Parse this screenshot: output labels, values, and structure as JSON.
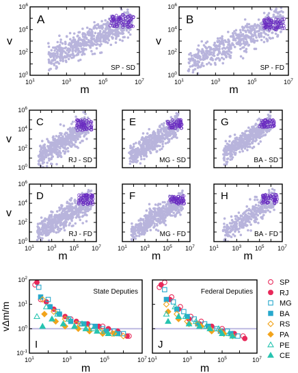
{
  "chart_data": {
    "type": "scatter",
    "log_scale": true,
    "axis_tick_labels": {
      "v_top": [
        "10^0",
        "10^2",
        "10^4",
        "10^6"
      ],
      "m_top": [
        "10^1",
        "10^3",
        "10^5",
        "10^7"
      ],
      "ratio": [
        "10^-1",
        "10^0",
        "10^1",
        "10^2"
      ]
    },
    "axis_ranges": {
      "m": [
        10,
        10000000
      ],
      "v": [
        1,
        1000000
      ],
      "ratio": [
        0.1,
        100
      ]
    },
    "xlabel": "m",
    "ylabel_top": "v",
    "ylabel_bottom": "vΔm/m",
    "reference_line_ratio": 1,
    "colors": {
      "cloud": "#b8b4dc",
      "highlight": "#6a2cc0",
      "ref_line": "#b9b5df",
      "text": "#000000"
    },
    "panels": [
      {
        "letter": "A",
        "label": "SP - SD",
        "cloud": {
          "m_range": [
            2.0,
            6.6
          ],
          "center_v": 3.1,
          "slope": 0.78,
          "spread": 0.55,
          "n": 650
        },
        "highlight": {
          "m_range": [
            5.4,
            6.7
          ],
          "v_range": [
            4.2,
            5.3
          ],
          "n": 70
        }
      },
      {
        "letter": "B",
        "label": "SP - FD",
        "cloud": {
          "m_range": [
            1.5,
            6.7
          ],
          "center_v": 2.9,
          "slope": 0.72,
          "spread": 0.6,
          "n": 550
        },
        "highlight": {
          "m_range": [
            5.6,
            6.8
          ],
          "v_range": [
            4.0,
            5.0
          ],
          "n": 70
        }
      },
      {
        "letter": "C",
        "label": "RJ - SD",
        "cloud": {
          "m_range": [
            1.8,
            6.3
          ],
          "center_v": 2.7,
          "slope": 0.75,
          "spread": 0.6,
          "n": 500
        },
        "highlight": {
          "m_range": [
            5.2,
            6.6
          ],
          "v_range": [
            3.9,
            5.0
          ],
          "n": 60
        }
      },
      {
        "letter": "E",
        "label": "MG - SD",
        "cloud": {
          "m_range": [
            1.6,
            6.0
          ],
          "center_v": 2.8,
          "slope": 0.75,
          "spread": 0.55,
          "n": 500
        },
        "highlight": {
          "m_range": [
            5.0,
            6.3
          ],
          "v_range": [
            4.1,
            5.0
          ],
          "n": 50
        }
      },
      {
        "letter": "G",
        "label": "BA - SD",
        "cloud": {
          "m_range": [
            1.8,
            6.0
          ],
          "center_v": 3.0,
          "slope": 0.8,
          "spread": 0.5,
          "n": 480
        },
        "highlight": {
          "m_range": [
            5.0,
            6.3
          ],
          "v_range": [
            4.2,
            5.0
          ],
          "n": 50
        }
      },
      {
        "letter": "D",
        "label": "RJ - FD",
        "cloud": {
          "m_range": [
            1.7,
            6.6
          ],
          "center_v": 2.6,
          "slope": 0.7,
          "spread": 0.6,
          "n": 550
        },
        "highlight": {
          "m_range": [
            5.4,
            6.7
          ],
          "v_range": [
            3.9,
            4.9
          ],
          "n": 60
        }
      },
      {
        "letter": "F",
        "label": "MG - FD",
        "cloud": {
          "m_range": [
            1.8,
            6.4
          ],
          "center_v": 2.6,
          "slope": 0.72,
          "spread": 0.55,
          "n": 500
        },
        "highlight": {
          "m_range": [
            5.2,
            6.5
          ],
          "v_range": [
            3.9,
            4.8
          ],
          "n": 55
        }
      },
      {
        "letter": "H",
        "label": "BA - FD",
        "cloud": {
          "m_range": [
            1.8,
            6.4
          ],
          "center_v": 2.6,
          "slope": 0.78,
          "spread": 0.55,
          "n": 350
        },
        "highlight": {
          "m_range": [
            5.2,
            6.6
          ],
          "v_range": [
            4.0,
            4.9
          ],
          "n": 50
        }
      }
    ],
    "ratio_panels": [
      {
        "letter": "I",
        "title": "State Deputies"
      },
      {
        "letter": "J",
        "title": "Federal Deputies"
      }
    ],
    "legend": [
      {
        "name": "SP",
        "marker": "circle-open",
        "color": "#e8295a"
      },
      {
        "name": "RJ",
        "marker": "circle-filled",
        "color": "#e8295a"
      },
      {
        "name": "MG",
        "marker": "square-open",
        "color": "#27a8cc"
      },
      {
        "name": "BA",
        "marker": "square-filled",
        "color": "#27a8cc"
      },
      {
        "name": "RS",
        "marker": "diamond-open",
        "color": "#f2a41c"
      },
      {
        "name": "PA",
        "marker": "diamond-filled",
        "color": "#f2a41c"
      },
      {
        "name": "PE",
        "marker": "triangle-open",
        "color": "#27c4b0"
      },
      {
        "name": "CE",
        "marker": "triangle-filled",
        "color": "#27c4b0"
      }
    ],
    "ratio_series": {
      "state": {
        "SP": [
          [
            1.3,
            1.8
          ],
          [
            1.6,
            1.2
          ],
          [
            2.1,
            0.9
          ],
          [
            2.6,
            0.6
          ],
          [
            3.2,
            0.4
          ],
          [
            3.8,
            0.2
          ],
          [
            4.3,
            0.1
          ],
          [
            4.9,
            0.1
          ],
          [
            5.3,
            -0.1
          ],
          [
            5.8,
            -0.2
          ],
          [
            6.3,
            -0.3
          ]
        ],
        "RJ": [
          [
            1.4,
            1.9
          ],
          [
            1.9,
            1.1
          ],
          [
            2.3,
            0.8
          ],
          [
            2.9,
            0.5
          ],
          [
            3.5,
            0.3
          ],
          [
            4.1,
            0.2
          ],
          [
            4.7,
            0.1
          ],
          [
            5.2,
            0.0
          ],
          [
            5.7,
            -0.1
          ],
          [
            6.2,
            -0.3
          ]
        ],
        "MG": [
          [
            1.5,
            1.7
          ],
          [
            2.0,
            1.2
          ],
          [
            2.5,
            0.7
          ],
          [
            3.1,
            0.4
          ],
          [
            3.7,
            0.2
          ],
          [
            4.3,
            0.1
          ],
          [
            4.9,
            0.0
          ],
          [
            5.5,
            -0.1
          ],
          [
            6.0,
            -0.2
          ]
        ],
        "BA": [
          [
            1.6,
            1.3
          ],
          [
            2.1,
            0.9
          ],
          [
            2.6,
            0.6
          ],
          [
            3.2,
            0.3
          ],
          [
            3.9,
            0.2
          ],
          [
            4.5,
            0.1
          ],
          [
            5.1,
            -0.1
          ],
          [
            5.7,
            -0.2
          ]
        ],
        "RS": [
          [
            1.7,
            1.2
          ],
          [
            2.3,
            0.7
          ],
          [
            2.9,
            0.4
          ],
          [
            3.5,
            0.2
          ],
          [
            4.1,
            0.0
          ],
          [
            4.8,
            -0.1
          ],
          [
            5.4,
            -0.2
          ],
          [
            6.0,
            -0.3
          ]
        ],
        "PA": [
          [
            1.8,
            0.6
          ],
          [
            2.4,
            0.3
          ],
          [
            2.9,
            0.1
          ],
          [
            3.6,
            0.0
          ],
          [
            4.2,
            -0.1
          ],
          [
            4.9,
            -0.2
          ],
          [
            5.5,
            -0.2
          ]
        ],
        "PE": [
          [
            1.4,
            0.5
          ],
          [
            1.9,
            0.9
          ],
          [
            2.5,
            0.6
          ],
          [
            3.1,
            0.4
          ],
          [
            3.8,
            0.2
          ],
          [
            4.4,
            0.0
          ],
          [
            5.0,
            -0.1
          ],
          [
            5.6,
            -0.2
          ]
        ],
        "CE": [
          [
            1.7,
            0.1
          ],
          [
            2.2,
            0.4
          ],
          [
            2.8,
            0.2
          ],
          [
            3.4,
            0.1
          ],
          [
            4.0,
            0.0
          ],
          [
            4.6,
            -0.1
          ],
          [
            5.2,
            -0.2
          ]
        ]
      },
      "federal": {
        "SP": [
          [
            1.4,
            1.7
          ],
          [
            1.7,
            1.9
          ],
          [
            2.1,
            1.3
          ],
          [
            2.6,
            0.9
          ],
          [
            3.2,
            0.5
          ],
          [
            3.8,
            0.3
          ],
          [
            4.4,
            0.1
          ],
          [
            5.0,
            0.0
          ],
          [
            5.6,
            -0.2
          ],
          [
            6.2,
            -0.3
          ]
        ],
        "RJ": [
          [
            1.5,
            1.8
          ],
          [
            2.0,
            1.2
          ],
          [
            2.5,
            0.8
          ],
          [
            3.1,
            0.4
          ],
          [
            3.7,
            0.2
          ],
          [
            4.4,
            0.1
          ],
          [
            5.0,
            -0.1
          ],
          [
            5.7,
            -0.2
          ],
          [
            6.3,
            -0.4
          ]
        ],
        "MG": [
          [
            1.7,
            1.6
          ],
          [
            2.2,
            1.1
          ],
          [
            2.8,
            0.7
          ],
          [
            3.4,
            0.4
          ],
          [
            4.0,
            0.2
          ],
          [
            4.7,
            0.0
          ],
          [
            5.3,
            -0.1
          ],
          [
            5.9,
            -0.3
          ]
        ],
        "BA": [
          [
            1.8,
            1.2
          ],
          [
            2.4,
            0.8
          ],
          [
            3.0,
            0.5
          ],
          [
            3.6,
            0.2
          ],
          [
            4.2,
            0.1
          ],
          [
            4.9,
            -0.1
          ],
          [
            5.5,
            -0.2
          ]
        ],
        "RS": [
          [
            1.8,
            1.0
          ],
          [
            2.4,
            0.6
          ],
          [
            3.0,
            0.3
          ],
          [
            3.6,
            0.2
          ],
          [
            4.3,
            0.0
          ],
          [
            4.9,
            -0.1
          ],
          [
            5.6,
            -0.3
          ]
        ],
        "PA": [
          [
            1.9,
            0.7
          ],
          [
            2.5,
            0.4
          ],
          [
            3.1,
            0.2
          ],
          [
            3.8,
            0.1
          ],
          [
            4.4,
            -0.1
          ],
          [
            5.1,
            -0.2
          ]
        ],
        "PE": [
          [
            1.8,
            0.6
          ],
          [
            2.3,
            0.9
          ],
          [
            2.9,
            0.5
          ],
          [
            3.5,
            0.3
          ],
          [
            4.1,
            0.1
          ],
          [
            4.8,
            0.0
          ],
          [
            5.4,
            -0.2
          ]
        ],
        "CE": [
          [
            1.9,
            0.3
          ],
          [
            2.5,
            0.5
          ],
          [
            3.1,
            0.2
          ],
          [
            3.7,
            0.1
          ],
          [
            4.3,
            0.0
          ],
          [
            5.0,
            -0.2
          ],
          [
            5.6,
            -0.3
          ]
        ]
      }
    }
  }
}
